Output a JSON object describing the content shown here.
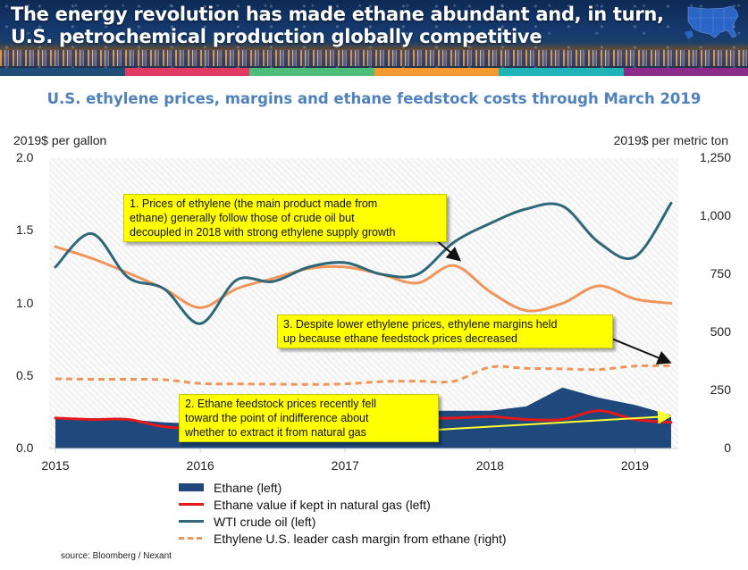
{
  "header": {
    "title_line1": "The energy revolution has made ethane abundant and, in turn,",
    "title_line2": "U.S. petrochemical production globally competitive",
    "map_icon": "us-map-icon",
    "stripe_colors": [
      "#1f4e79",
      "#e03c63",
      "#4dbb7a",
      "#f49a32",
      "#1fb3b8",
      "#8b2c8b"
    ]
  },
  "chart_data": {
    "type": "line",
    "title": "U.S. ethylene prices, margins and ethane feedstock costs through March 2019",
    "ylabel": "2019$ per gallon",
    "ylabel_right": "2019$ per metric ton",
    "ylim": [
      0,
      2.0
    ],
    "ylim_right": [
      0,
      1250
    ],
    "yticks": [
      "2.0",
      "1.5",
      "1.0",
      "0.5",
      "0.0"
    ],
    "yticks_right": [
      "1,250",
      "1,000",
      "750",
      "500",
      "250",
      "0"
    ],
    "xticks": [
      "2015",
      "2016",
      "2017",
      "2018",
      "2019"
    ],
    "grid": false,
    "x": [
      2015.0,
      2015.25,
      2015.5,
      2015.75,
      2016.0,
      2016.25,
      2016.5,
      2016.75,
      2017.0,
      2017.25,
      2017.5,
      2017.75,
      2018.0,
      2018.25,
      2018.5,
      2018.75,
      2019.0,
      2019.25
    ],
    "series": [
      {
        "name": "Ethane (left)",
        "type": "area",
        "axis": "left",
        "color": "#1f497d",
        "values": [
          0.21,
          0.2,
          0.2,
          0.18,
          0.17,
          0.17,
          0.17,
          0.2,
          0.23,
          0.25,
          0.26,
          0.26,
          0.26,
          0.29,
          0.42,
          0.35,
          0.3,
          0.23
        ]
      },
      {
        "name": "Ethane value if kept in natural gas (left)",
        "type": "line",
        "axis": "left",
        "color": "#e31a1c",
        "values": [
          0.21,
          0.2,
          0.2,
          0.15,
          0.14,
          0.16,
          0.19,
          0.2,
          0.21,
          0.21,
          0.21,
          0.21,
          0.22,
          0.2,
          0.2,
          0.26,
          0.2,
          0.18
        ]
      },
      {
        "name": "WTI crude oil (left)",
        "type": "line",
        "axis": "left",
        "color": "#2e6878",
        "values": [
          1.25,
          1.48,
          1.18,
          1.1,
          0.86,
          1.16,
          1.15,
          1.25,
          1.28,
          1.2,
          1.2,
          1.42,
          1.55,
          1.65,
          1.67,
          1.42,
          1.32,
          1.69
        ]
      },
      {
        "name": "Ethylene price (left)",
        "type": "line",
        "axis": "left",
        "color": "#f0955a",
        "legend": false,
        "values": [
          1.39,
          1.31,
          1.21,
          1.1,
          0.97,
          1.1,
          1.17,
          1.24,
          1.25,
          1.2,
          1.14,
          1.26,
          1.08,
          0.95,
          1.0,
          1.12,
          1.03,
          1.0
        ]
      },
      {
        "name": "Ethylene U.S. leader cash margin from ethane (right)",
        "type": "dashed-line",
        "axis": "right",
        "color": "#f0955a",
        "values": [
          300,
          298,
          298,
          296,
          280,
          278,
          277,
          276,
          278,
          288,
          290,
          290,
          350,
          345,
          343,
          340,
          355,
          356
        ]
      }
    ],
    "annotations": [
      {
        "id": 1,
        "text_lines": [
          "1. Prices of ethylene (the main product made from",
          "ethane) generally follow those of crude oil but",
          "decoupled in 2018 with strong ethylene supply growth"
        ]
      },
      {
        "id": 2,
        "text_lines": [
          "2. Ethane feedstock prices recently fell",
          "toward the point of indifference about",
          "whether to extract it from natural gas"
        ]
      },
      {
        "id": 3,
        "text_lines": [
          "3. Despite lower ethylene prices, ethylene margins held",
          "up because ethane feedstock prices decreased"
        ]
      }
    ],
    "legend_placement": "bottom"
  },
  "source": "source: Bloomberg / Nexant"
}
